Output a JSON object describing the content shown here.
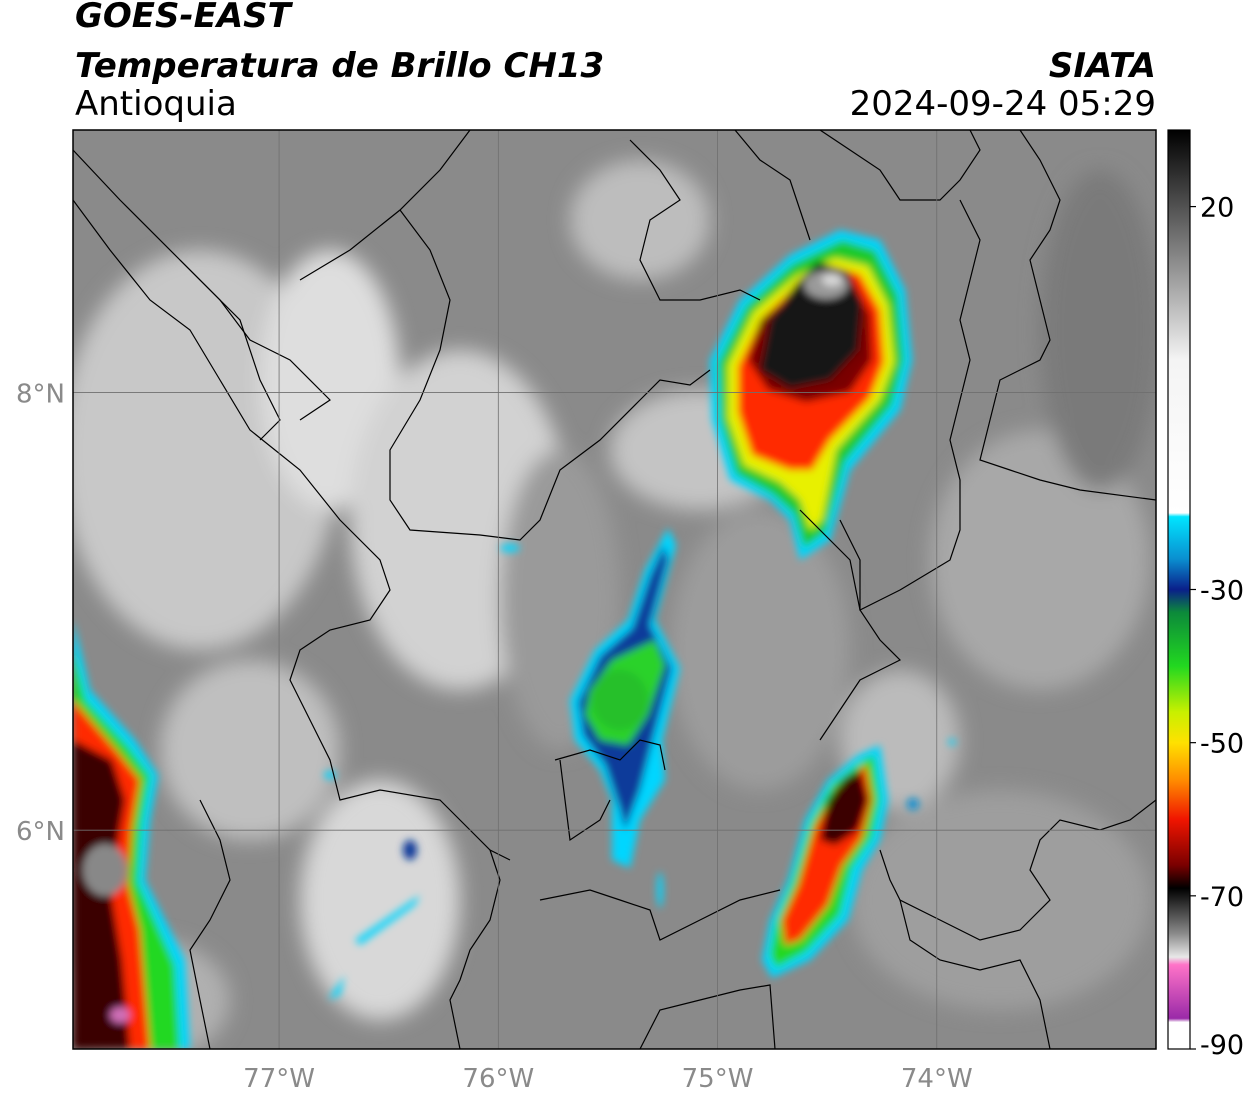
{
  "header": {
    "title_line1": "GOES-EAST",
    "title_line2": "Temperatura de Brillo CH13",
    "region": "Antioquia",
    "organization": "SIATA",
    "datetime": "2024-09-24 05:29"
  },
  "map": {
    "lon_range": [
      -77.94,
      -73.0
    ],
    "lat_range": [
      5.0,
      9.2
    ],
    "lon_ticks": [
      {
        "value": -77,
        "label": "77°W"
      },
      {
        "value": -76,
        "label": "76°W"
      },
      {
        "value": -75,
        "label": "75°W"
      },
      {
        "value": -74,
        "label": "74°W"
      }
    ],
    "lat_ticks": [
      {
        "value": 8,
        "label": "8°N"
      },
      {
        "value": 6,
        "label": "6°N"
      }
    ],
    "gridlines": true
  },
  "colorbar": {
    "range": [
      -90,
      30
    ],
    "ticks": [
      {
        "value": 20,
        "label": "20"
      },
      {
        "value": -30,
        "label": "-30"
      },
      {
        "value": -50,
        "label": "-50"
      },
      {
        "value": -70,
        "label": "-70"
      },
      {
        "value": -90,
        "label": "-90"
      }
    ],
    "stops": [
      {
        "value": 30,
        "color": "#000000"
      },
      {
        "value": 0,
        "color": "#f4f4f4"
      },
      {
        "value": -20,
        "color": "#ffffff"
      },
      {
        "value": -20.5,
        "color": "#00e5ff"
      },
      {
        "value": -26,
        "color": "#0a8fd0"
      },
      {
        "value": -30,
        "color": "#0a1f8a"
      },
      {
        "value": -33,
        "color": "#0c8a3a"
      },
      {
        "value": -40,
        "color": "#22d820"
      },
      {
        "value": -46,
        "color": "#c8f000"
      },
      {
        "value": -50,
        "color": "#ffe100"
      },
      {
        "value": -55,
        "color": "#ff8a00"
      },
      {
        "value": -60,
        "color": "#f01500"
      },
      {
        "value": -66,
        "color": "#7a0000"
      },
      {
        "value": -69,
        "color": "#000000"
      },
      {
        "value": -75,
        "color": "#8c8c8c"
      },
      {
        "value": -78,
        "color": "#e8e8e8"
      },
      {
        "value": -79,
        "color": "#ff73c8"
      },
      {
        "value": -86,
        "color": "#9a2aa8"
      },
      {
        "value": -86.5,
        "color": "#ffffff"
      },
      {
        "value": -90,
        "color": "#ffffff"
      }
    ]
  }
}
